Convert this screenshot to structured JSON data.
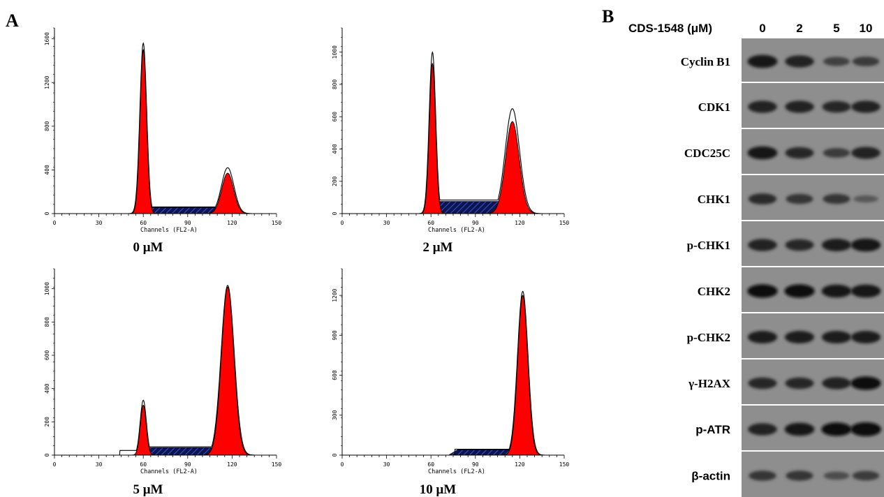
{
  "panel_a": {
    "letter": "A",
    "x_axis_title": "Channels (FL2-A)",
    "x_ticks": [
      "0",
      "30",
      "60",
      "90",
      "120",
      "150"
    ],
    "histograms": [
      {
        "label": "0 μM",
        "y_ticks": [
          "0",
          "400",
          "800",
          "1200",
          "1600"
        ]
      },
      {
        "label": "2 μM",
        "y_ticks": [
          "0",
          "200",
          "400",
          "600",
          "800",
          "1000"
        ]
      },
      {
        "label": "5 μM",
        "y_ticks": [
          "0",
          "200",
          "400",
          "600",
          "800",
          "1000"
        ]
      },
      {
        "label": "10 μM",
        "y_ticks": [
          "0",
          "300",
          "600",
          "900",
          "1200"
        ]
      }
    ]
  },
  "panel_b": {
    "letter": "B",
    "treatment_label": "CDS-1548 (μM)",
    "doses": [
      "0",
      "2",
      "5",
      "10"
    ],
    "blots": [
      {
        "label": "Cyclin B1",
        "intensity": [
          0.9,
          0.8,
          0.5,
          0.55
        ]
      },
      {
        "label": "CDK1",
        "intensity": [
          0.8,
          0.8,
          0.75,
          0.8
        ]
      },
      {
        "label": "CDC25C",
        "intensity": [
          0.9,
          0.75,
          0.55,
          0.8
        ]
      },
      {
        "label": "CHK1",
        "intensity": [
          0.7,
          0.6,
          0.6,
          0.3
        ]
      },
      {
        "label": "p-CHK1",
        "intensity": [
          0.8,
          0.75,
          0.85,
          0.9
        ]
      },
      {
        "label": "CHK2",
        "intensity": [
          0.95,
          0.95,
          0.9,
          0.9
        ]
      },
      {
        "label": "p-CHK2",
        "intensity": [
          0.85,
          0.85,
          0.85,
          0.85
        ]
      },
      {
        "label": "γ-H2AX",
        "intensity": [
          0.75,
          0.75,
          0.8,
          0.95
        ]
      },
      {
        "label": "p-ATR",
        "intensity": [
          0.8,
          0.9,
          0.95,
          1.0
        ]
      },
      {
        "label": "β-actin",
        "intensity": [
          0.6,
          0.6,
          0.4,
          0.55
        ]
      }
    ]
  },
  "chart_data": [
    {
      "type": "area",
      "title": "0 μM",
      "xlabel": "Channels (FL2-A)",
      "ylabel": "",
      "xlim": [
        0,
        150
      ],
      "ylim": [
        0,
        1700
      ],
      "g1": {
        "mean": 60,
        "sd": 2.2,
        "height": 1500
      },
      "s": {
        "start": 62,
        "end": 113,
        "level": 55
      },
      "g2": {
        "mean": 117,
        "sd": 4.0,
        "height": 370
      },
      "envelope_peaks": [
        1560,
        420
      ]
    },
    {
      "type": "area",
      "title": "2 μM",
      "xlabel": "Channels (FL2-A)",
      "ylabel": "",
      "xlim": [
        0,
        150
      ],
      "ylim": [
        0,
        1150
      ],
      "g1": {
        "mean": 61,
        "sd": 2.1,
        "height": 930
      },
      "s": {
        "start": 62,
        "end": 112,
        "level": 75
      },
      "g2": {
        "mean": 115,
        "sd": 4.6,
        "height": 570
      },
      "envelope_peaks": [
        1000,
        650
      ]
    },
    {
      "type": "area",
      "title": "5 μM",
      "xlabel": "Channels (FL2-A)",
      "ylabel": "",
      "xlim": [
        0,
        150
      ],
      "ylim": [
        0,
        1120
      ],
      "g1": {
        "mean": 60,
        "sd": 2.0,
        "height": 300
      },
      "s": {
        "start": 62,
        "end": 110,
        "level": 45
      },
      "g2": {
        "mean": 117,
        "sd": 4.2,
        "height": 1010
      },
      "envelope_peaks": [
        330,
        1020
      ]
    },
    {
      "type": "area",
      "title": "10 μM",
      "xlabel": "Channels (FL2-A)",
      "ylabel": "",
      "xlim": [
        0,
        150
      ],
      "ylim": [
        0,
        1400
      ],
      "g1": {
        "mean": 60,
        "sd": 2.0,
        "height": 0
      },
      "s": {
        "start": 78,
        "end": 116,
        "level": 40
      },
      "g2": {
        "mean": 122,
        "sd": 3.4,
        "height": 1200
      },
      "envelope_peaks": [
        0,
        1230
      ]
    }
  ]
}
